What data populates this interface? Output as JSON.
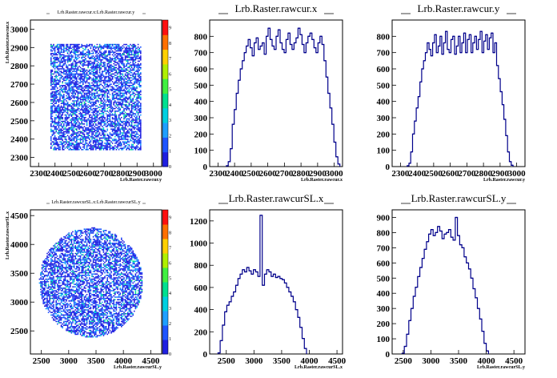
{
  "chart_data": [
    {
      "type": "heatmap",
      "title": "Lrb.Raster.rawcur.x:Lrb.Raster.rawcur.y",
      "xlabel": "Lrb.Raster.rawcur.y",
      "ylabel": "Lrb.Raster.rawcur.x",
      "x_ticks": [
        "2300",
        "2400",
        "2500",
        "2600",
        "2700",
        "2800",
        "2900",
        "3000"
      ],
      "y_ticks": [
        "2300",
        "2400",
        "2500",
        "2600",
        "2700",
        "2800",
        "2900",
        "3000"
      ],
      "xlim": [
        2250,
        3050
      ],
      "ylim": [
        2250,
        3050
      ],
      "fill_region": {
        "shape": "square",
        "x": [
          2370,
          2920
        ],
        "y": [
          2340,
          2920
        ]
      },
      "palette_ticks": [
        "0",
        "1",
        "2",
        "3",
        "4",
        "5",
        "6",
        "7",
        "8",
        "9"
      ],
      "palette_range": [
        0,
        9
      ]
    },
    {
      "type": "bar",
      "title": "Lrb.Raster.rawcur.x",
      "xlabel": "Lrb.Raster.rawcur.x",
      "x_ticks": [
        "2300",
        "2400",
        "2500",
        "2600",
        "2700",
        "2800",
        "2900",
        "3000"
      ],
      "y_ticks": [
        "0",
        "100",
        "200",
        "300",
        "400",
        "500",
        "600",
        "700",
        "800"
      ],
      "xlim": [
        2250,
        3050
      ],
      "ylim": [
        0,
        900
      ],
      "bin_start": 2350,
      "bin_width": 12,
      "values": [
        5,
        30,
        110,
        260,
        350,
        450,
        530,
        600,
        650,
        700,
        740,
        780,
        730,
        680,
        760,
        790,
        720,
        740,
        760,
        690,
        800,
        850,
        780,
        740,
        720,
        800,
        840,
        760,
        720,
        700,
        780,
        820,
        750,
        720,
        760,
        790,
        850,
        810,
        750,
        700,
        760,
        800,
        820,
        780,
        730,
        700,
        760,
        800,
        750,
        650,
        550,
        450,
        360,
        260,
        150,
        60,
        15
      ]
    },
    {
      "type": "bar",
      "title": "Lrb.Raster.rawcur.y",
      "xlabel": "Lrb.Raster.rawcur.y",
      "x_ticks": [
        "2300",
        "2400",
        "2500",
        "2600",
        "2700",
        "2800",
        "2900",
        "3000"
      ],
      "y_ticks": [
        "0",
        "100",
        "200",
        "300",
        "400",
        "500",
        "600",
        "700",
        "800"
      ],
      "xlim": [
        2250,
        3050
      ],
      "ylim": [
        0,
        900
      ],
      "bin_start": 2340,
      "bin_width": 11,
      "values": [
        5,
        20,
        90,
        200,
        280,
        360,
        430,
        520,
        600,
        650,
        700,
        760,
        720,
        680,
        760,
        810,
        700,
        740,
        800,
        690,
        760,
        830,
        720,
        700,
        780,
        800,
        690,
        740,
        800,
        700,
        760,
        820,
        700,
        780,
        810,
        700,
        760,
        800,
        720,
        780,
        830,
        700,
        770,
        810,
        720,
        790,
        820,
        700,
        760,
        620,
        540,
        460,
        380,
        290,
        190,
        90,
        30,
        8
      ]
    },
    {
      "type": "heatmap",
      "title": "Lrb.Raster.rawcurSL.x:Lrb.Raster.rawcurSL.y",
      "xlabel": "Lrb.Raster.rawcurSL.y",
      "ylabel": "Lrb.Raster.rawcurSL.x",
      "x_ticks": [
        "2500",
        "3000",
        "3500",
        "4000",
        "4500"
      ],
      "y_ticks": [
        "2500",
        "3000",
        "3500",
        "4000",
        "4500"
      ],
      "xlim": [
        2300,
        4700
      ],
      "ylim": [
        2100,
        4600
      ],
      "fill_region": {
        "shape": "circle",
        "cx": 3400,
        "cy": 3350,
        "r": 950
      },
      "palette_ticks": [
        "0",
        "1",
        "2",
        "3",
        "4",
        "5",
        "6",
        "7",
        "8",
        "9"
      ],
      "palette_range": [
        0,
        9
      ]
    },
    {
      "type": "bar",
      "title": "Lrb.Raster.rawcurSL.x",
      "xlabel": "Lrb.Raster.rawcurSL.x",
      "x_ticks": [
        "2500",
        "3000",
        "3500",
        "4000",
        "4500"
      ],
      "y_ticks": [
        "0",
        "200",
        "400",
        "600",
        "800",
        "1000",
        "1200"
      ],
      "xlim": [
        2200,
        4600
      ],
      "ylim": [
        0,
        1300
      ],
      "bin_start": 2350,
      "bin_width": 40,
      "values": [
        10,
        120,
        260,
        380,
        440,
        470,
        520,
        560,
        620,
        680,
        720,
        760,
        740,
        780,
        750,
        720,
        760,
        740,
        700,
        1250,
        620,
        720,
        760,
        740,
        700,
        720,
        690,
        700,
        680,
        670,
        640,
        600,
        560,
        520,
        470,
        400,
        330,
        240,
        140,
        50
      ]
    },
    {
      "type": "bar",
      "title": "Lrb.Raster.rawcurSL.y",
      "xlabel": "Lrb.Raster.rawcurSL.y",
      "x_ticks": [
        "2500",
        "3000",
        "3500",
        "4000",
        "4500"
      ],
      "y_ticks": [
        "0",
        "100",
        "200",
        "300",
        "400",
        "500",
        "600",
        "700",
        "800",
        "900"
      ],
      "xlim": [
        2300,
        4700
      ],
      "ylim": [
        0,
        950
      ],
      "bin_start": 2480,
      "bin_width": 40,
      "values": [
        5,
        50,
        130,
        220,
        300,
        380,
        440,
        510,
        570,
        630,
        690,
        740,
        790,
        820,
        780,
        800,
        840,
        810,
        760,
        790,
        800,
        820,
        770,
        750,
        900,
        780,
        720,
        700,
        640,
        600,
        560,
        500,
        430,
        370,
        300,
        230,
        150,
        70,
        20
      ]
    }
  ]
}
